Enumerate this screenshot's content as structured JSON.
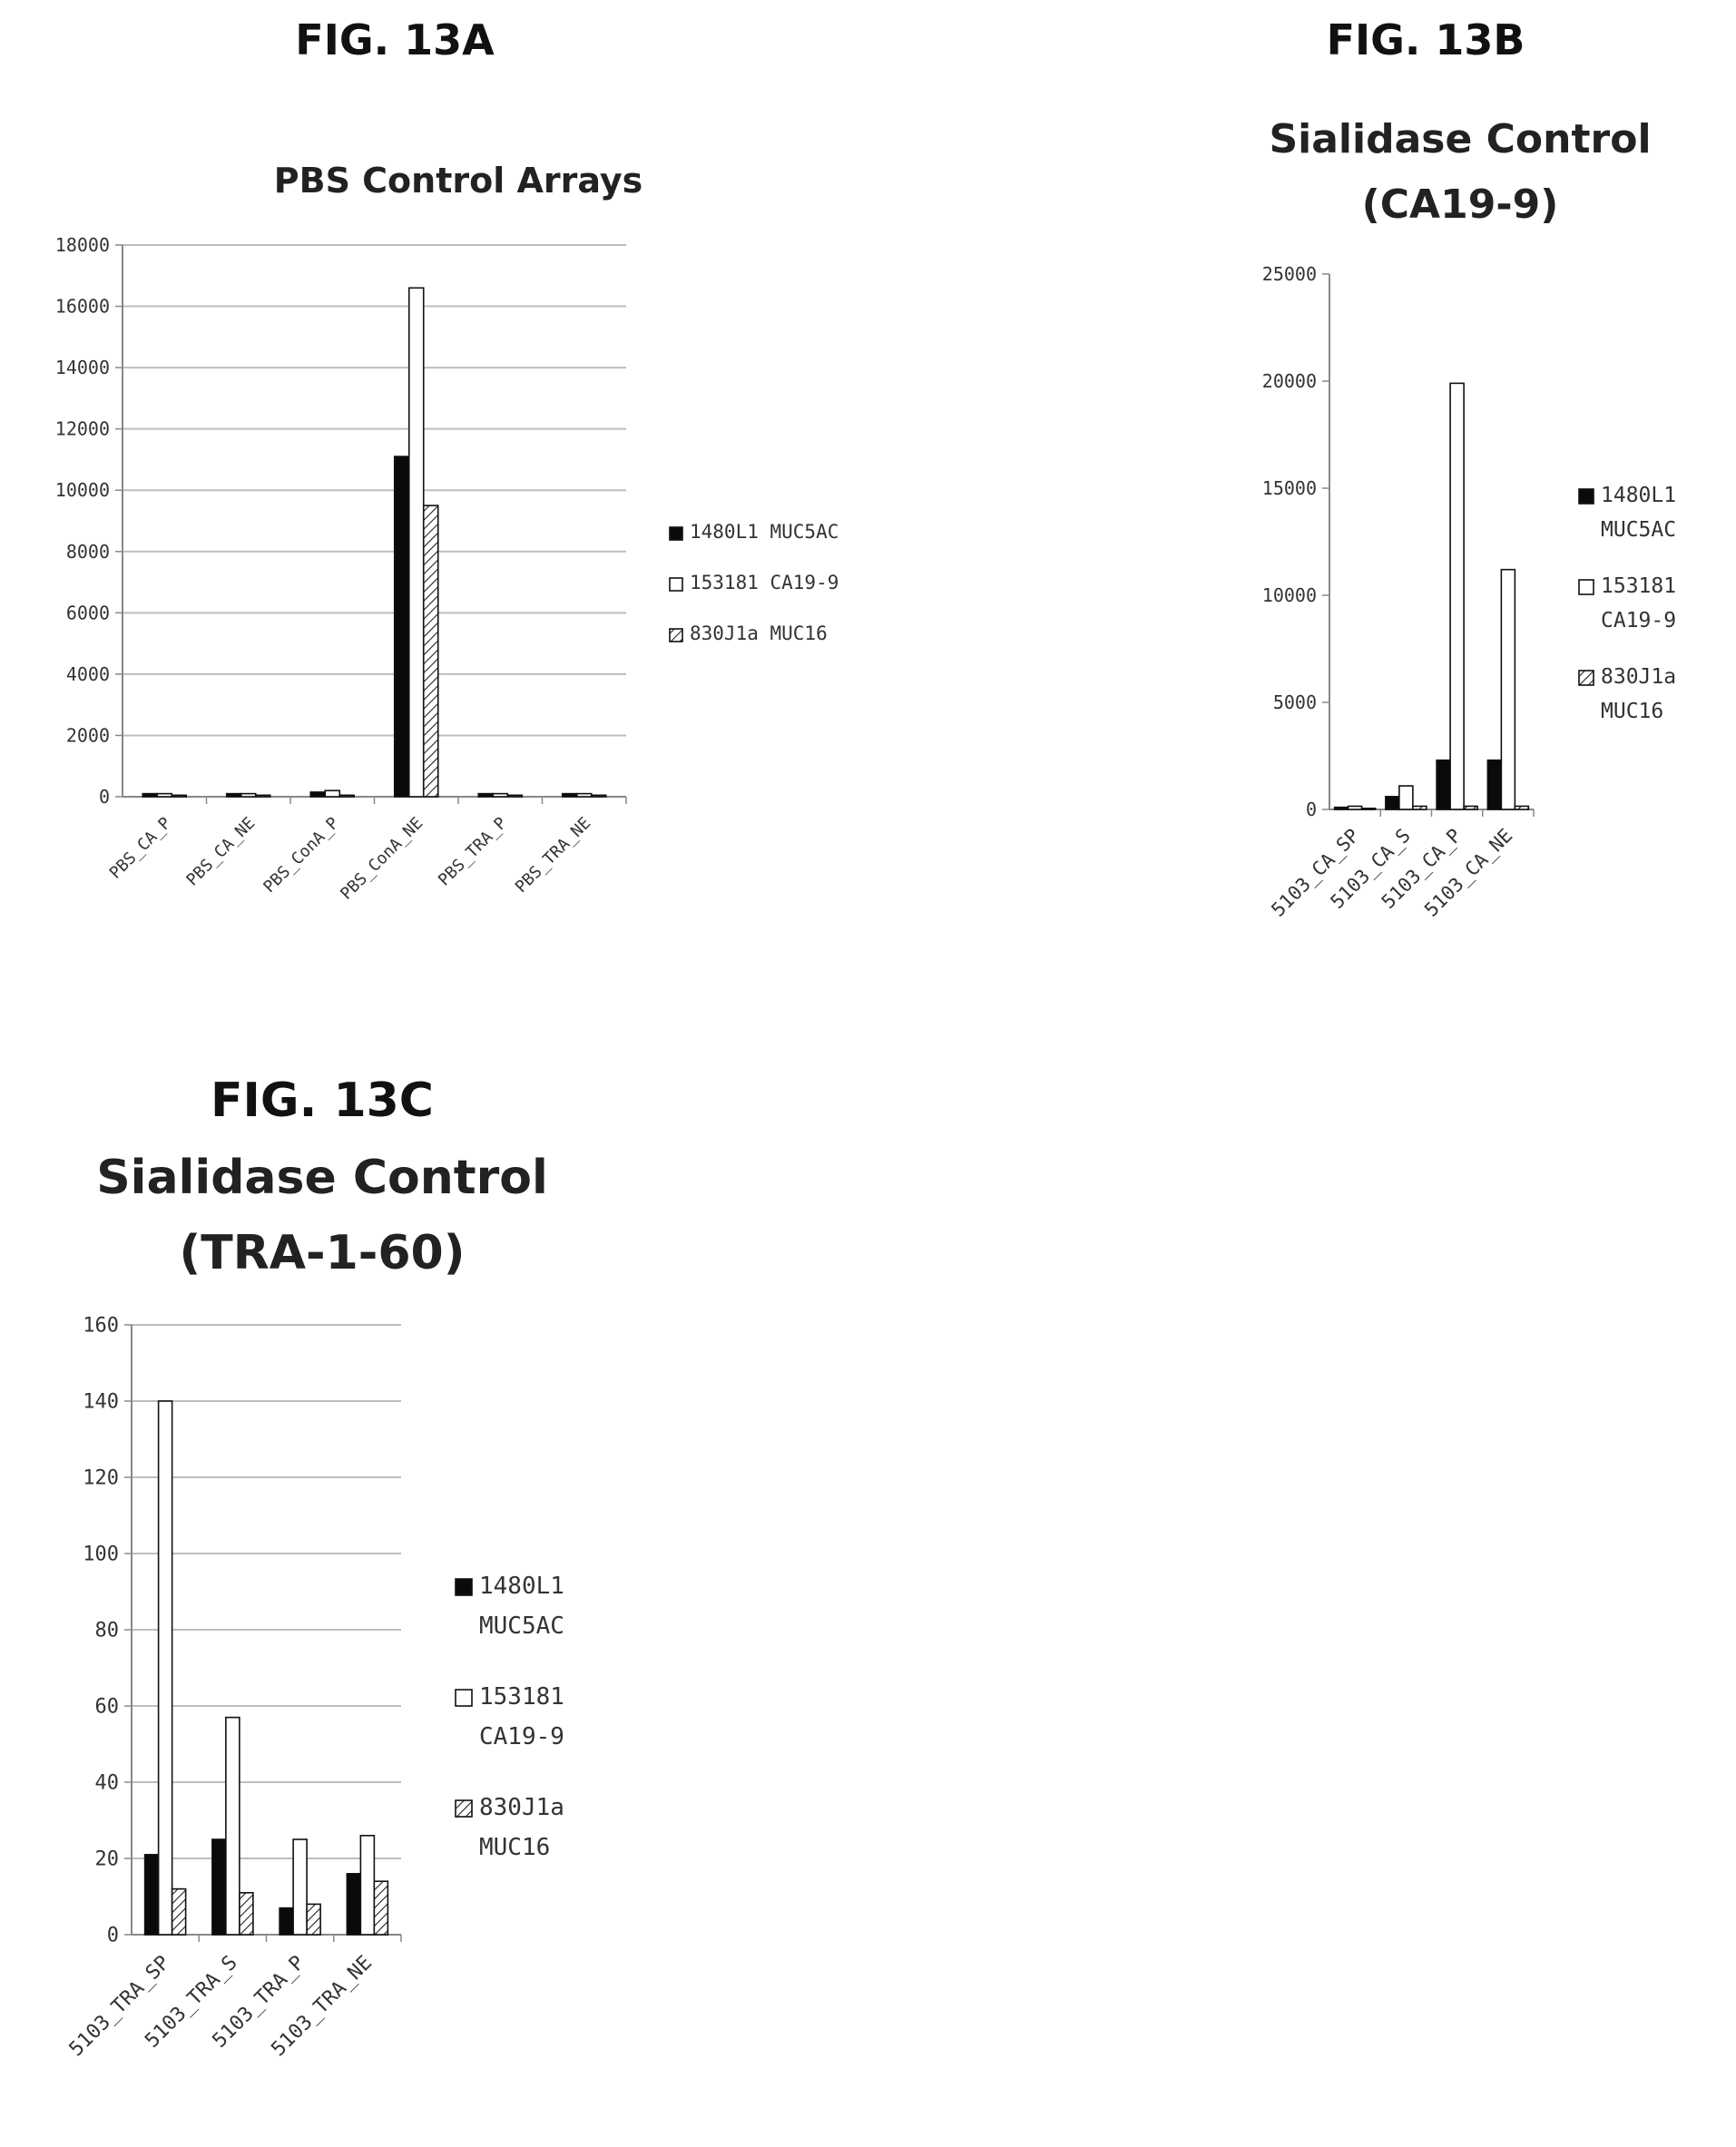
{
  "figures": [
    {
      "label": "FIG. 13A",
      "title": [
        "PBS Control Arrays"
      ]
    },
    {
      "label": "FIG. 13B",
      "title": [
        "Sialidase Control",
        "(CA19-9)"
      ]
    },
    {
      "label": "FIG. 13C",
      "title": [
        "Sialidase Control",
        "(TRA-1-60)"
      ]
    }
  ],
  "colors": {
    "series_1": "#000000",
    "series_2": "#ffffff",
    "series_3": "hatched",
    "grid": "#bdbdbd",
    "axis": "#888888"
  },
  "chart_data": [
    {
      "type": "bar",
      "title": "PBS Control Arrays",
      "categories": [
        "PBS_CA_P",
        "PBS_CA_NE",
        "PBS_ConA_P",
        "PBS_ConA_NE",
        "PBS_TRA_P",
        "PBS_TRA_NE"
      ],
      "series": [
        {
          "name": "1480L1 MUC5AC",
          "legend_lines": [
            "1480L1 MUC5AC"
          ],
          "values": [
            100,
            100,
            150,
            11100,
            100,
            100
          ]
        },
        {
          "name": "153181 CA19-9",
          "legend_lines": [
            "153181 CA19-9"
          ],
          "values": [
            100,
            100,
            200,
            16600,
            100,
            100
          ]
        },
        {
          "name": "830J1a MUC16",
          "legend_lines": [
            "830J1a MUC16"
          ],
          "values": [
            50,
            50,
            50,
            9500,
            50,
            50
          ]
        }
      ],
      "yticks": [
        0,
        2000,
        4000,
        6000,
        8000,
        10000,
        12000,
        14000,
        16000,
        18000
      ],
      "ylim": [
        0,
        18000
      ],
      "grid": true,
      "legend": "right"
    },
    {
      "type": "bar",
      "title": "Sialidase Control (CA19-9)",
      "categories": [
        "5103_CA_SP",
        "5103_CA_S",
        "5103_CA_P",
        "5103_CA_NE"
      ],
      "series": [
        {
          "name": "1480L1 MUC5AC",
          "legend_lines": [
            "1480L1",
            "MUC5AC"
          ],
          "values": [
            100,
            600,
            2300,
            2300
          ]
        },
        {
          "name": "153181 CA19-9",
          "legend_lines": [
            "153181",
            "CA19-9"
          ],
          "values": [
            150,
            1100,
            19900,
            11200
          ]
        },
        {
          "name": "830J1a MUC16",
          "legend_lines": [
            "830J1a",
            "MUC16"
          ],
          "values": [
            50,
            150,
            150,
            150
          ]
        }
      ],
      "yticks": [
        0,
        5000,
        10000,
        15000,
        20000,
        25000
      ],
      "ylim": [
        0,
        25000
      ],
      "grid": false,
      "legend": "right"
    },
    {
      "type": "bar",
      "title": "Sialidase Control (TRA-1-60)",
      "categories": [
        "5103_TRA_SP",
        "5103_TRA_S",
        "5103_TRA_P",
        "5103_TRA_NE"
      ],
      "series": [
        {
          "name": "1480L1 MUC5AC",
          "legend_lines": [
            "1480L1",
            "MUC5AC"
          ],
          "values": [
            21,
            25,
            7,
            16
          ]
        },
        {
          "name": "153181 CA19-9",
          "legend_lines": [
            "153181",
            "CA19-9"
          ],
          "values": [
            140,
            57,
            25,
            26
          ]
        },
        {
          "name": "830J1a MUC16",
          "legend_lines": [
            "830J1a",
            "MUC16"
          ],
          "values": [
            12,
            11,
            8,
            14
          ]
        }
      ],
      "yticks": [
        0,
        20,
        40,
        60,
        80,
        100,
        120,
        140,
        160
      ],
      "ylim": [
        0,
        160
      ],
      "grid": true,
      "legend": "right"
    }
  ]
}
